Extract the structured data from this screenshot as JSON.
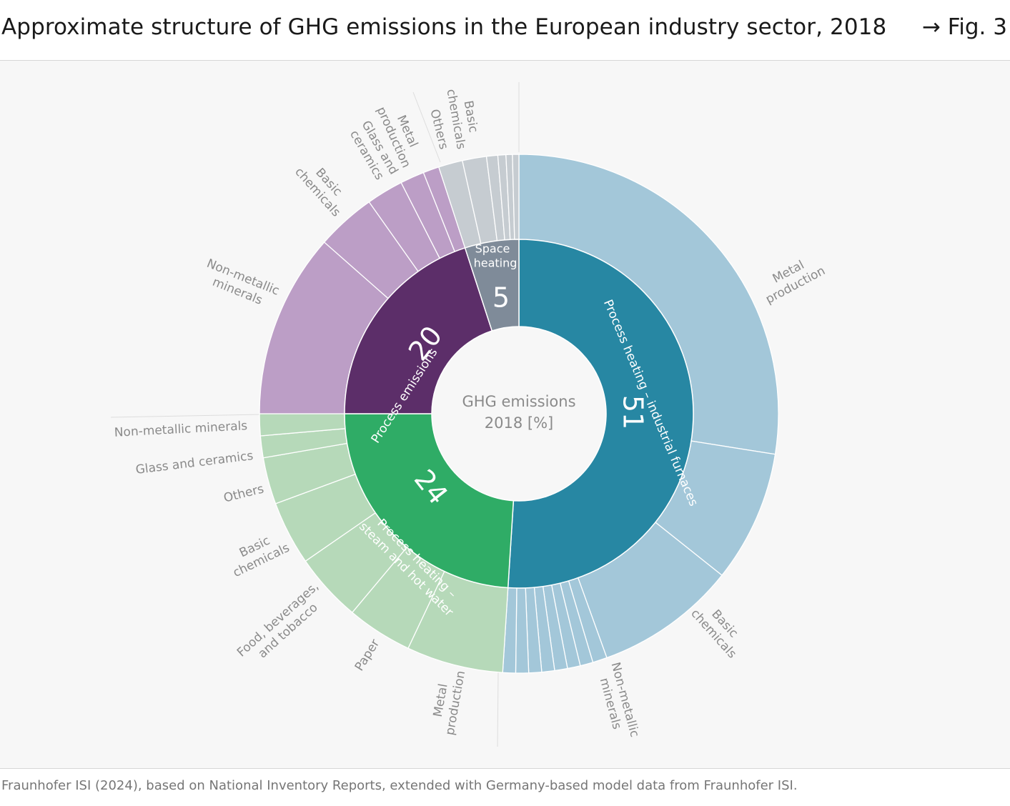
{
  "header": {
    "title": "Approximate structure of GHG emissions in the European industry sector, 2018",
    "figure_ref": "→ Fig. 3"
  },
  "source": "Fraunhofer ISI (2024), based on National Inventory Reports, extended with Germany-based model data from Fraunhofer ISI.",
  "chart_data": {
    "type": "sunburst",
    "center_label": [
      "GHG emissions",
      "2018 [%]"
    ],
    "colors": {
      "process_heating_furnaces": {
        "inner": "#2787a3",
        "outer": "#a3c7d9"
      },
      "steam_hot_water": {
        "inner": "#2fac66",
        "outer": "#b6d9b9"
      },
      "process_emissions": {
        "inner": "#5c2e69",
        "outer": "#bc9ec6"
      },
      "space_heating": {
        "inner": "#7f8b99",
        "outer": "#c6ccd1"
      },
      "label_text": "#8a8a8a",
      "leader_line": "#dddddd"
    },
    "categories": [
      {
        "key": "process_heating_furnaces",
        "label": "Process heating – industrial furnaces",
        "value": 51,
        "subcategories": [
          {
            "label": "Metal production",
            "value": 27.5
          },
          {
            "label": "Basic chemicals",
            "value": 8.2
          },
          {
            "label": "Non-metallic minerals",
            "value": 8.8
          },
          {
            "label": "",
            "value": 0.9
          },
          {
            "label": "",
            "value": 0.8
          },
          {
            "label": "",
            "value": 0.8
          },
          {
            "label": "",
            "value": 0.8
          },
          {
            "label": "",
            "value": 0.8
          },
          {
            "label": "",
            "value": 0.8
          },
          {
            "label": "",
            "value": 0.8
          },
          {
            "label": "",
            "value": 0.8
          }
        ]
      },
      {
        "key": "steam_hot_water",
        "label": "Process heating – steam and hot water",
        "value": 24,
        "subcategories": [
          {
            "label": "Metal production",
            "value": 6.2
          },
          {
            "label": "Paper",
            "value": 4.2
          },
          {
            "label": "Food, beverages, and tobacco",
            "value": 4.4
          },
          {
            "label": "Basic chemicals",
            "value": 4.1
          },
          {
            "label": "Others",
            "value": 3.0
          },
          {
            "label": "Glass and ceramics",
            "value": 1.4
          },
          {
            "label": "Non-metallic minerals",
            "value": 1.4
          }
        ]
      },
      {
        "key": "process_emissions",
        "label": "Process emissions",
        "value": 20,
        "subcategories": [
          {
            "label": "Non-metallic minerals",
            "value": 11.5
          },
          {
            "label": "Basic chemicals",
            "value": 3.7
          },
          {
            "label": "Glass and ceramics",
            "value": 2.3
          },
          {
            "label": "Metal production",
            "value": 1.5
          },
          {
            "label": "",
            "value": 1.0
          }
        ]
      },
      {
        "key": "space_heating",
        "label": "Space heating",
        "value": 5,
        "subcategories": [
          {
            "label": "Others",
            "value": 1.5
          },
          {
            "label": "Basic chemicals",
            "value": 1.5
          },
          {
            "label": "",
            "value": 0.7
          },
          {
            "label": "",
            "value": 0.5
          },
          {
            "label": "",
            "value": 0.4
          },
          {
            "label": "",
            "value": 0.4
          }
        ]
      }
    ]
  }
}
